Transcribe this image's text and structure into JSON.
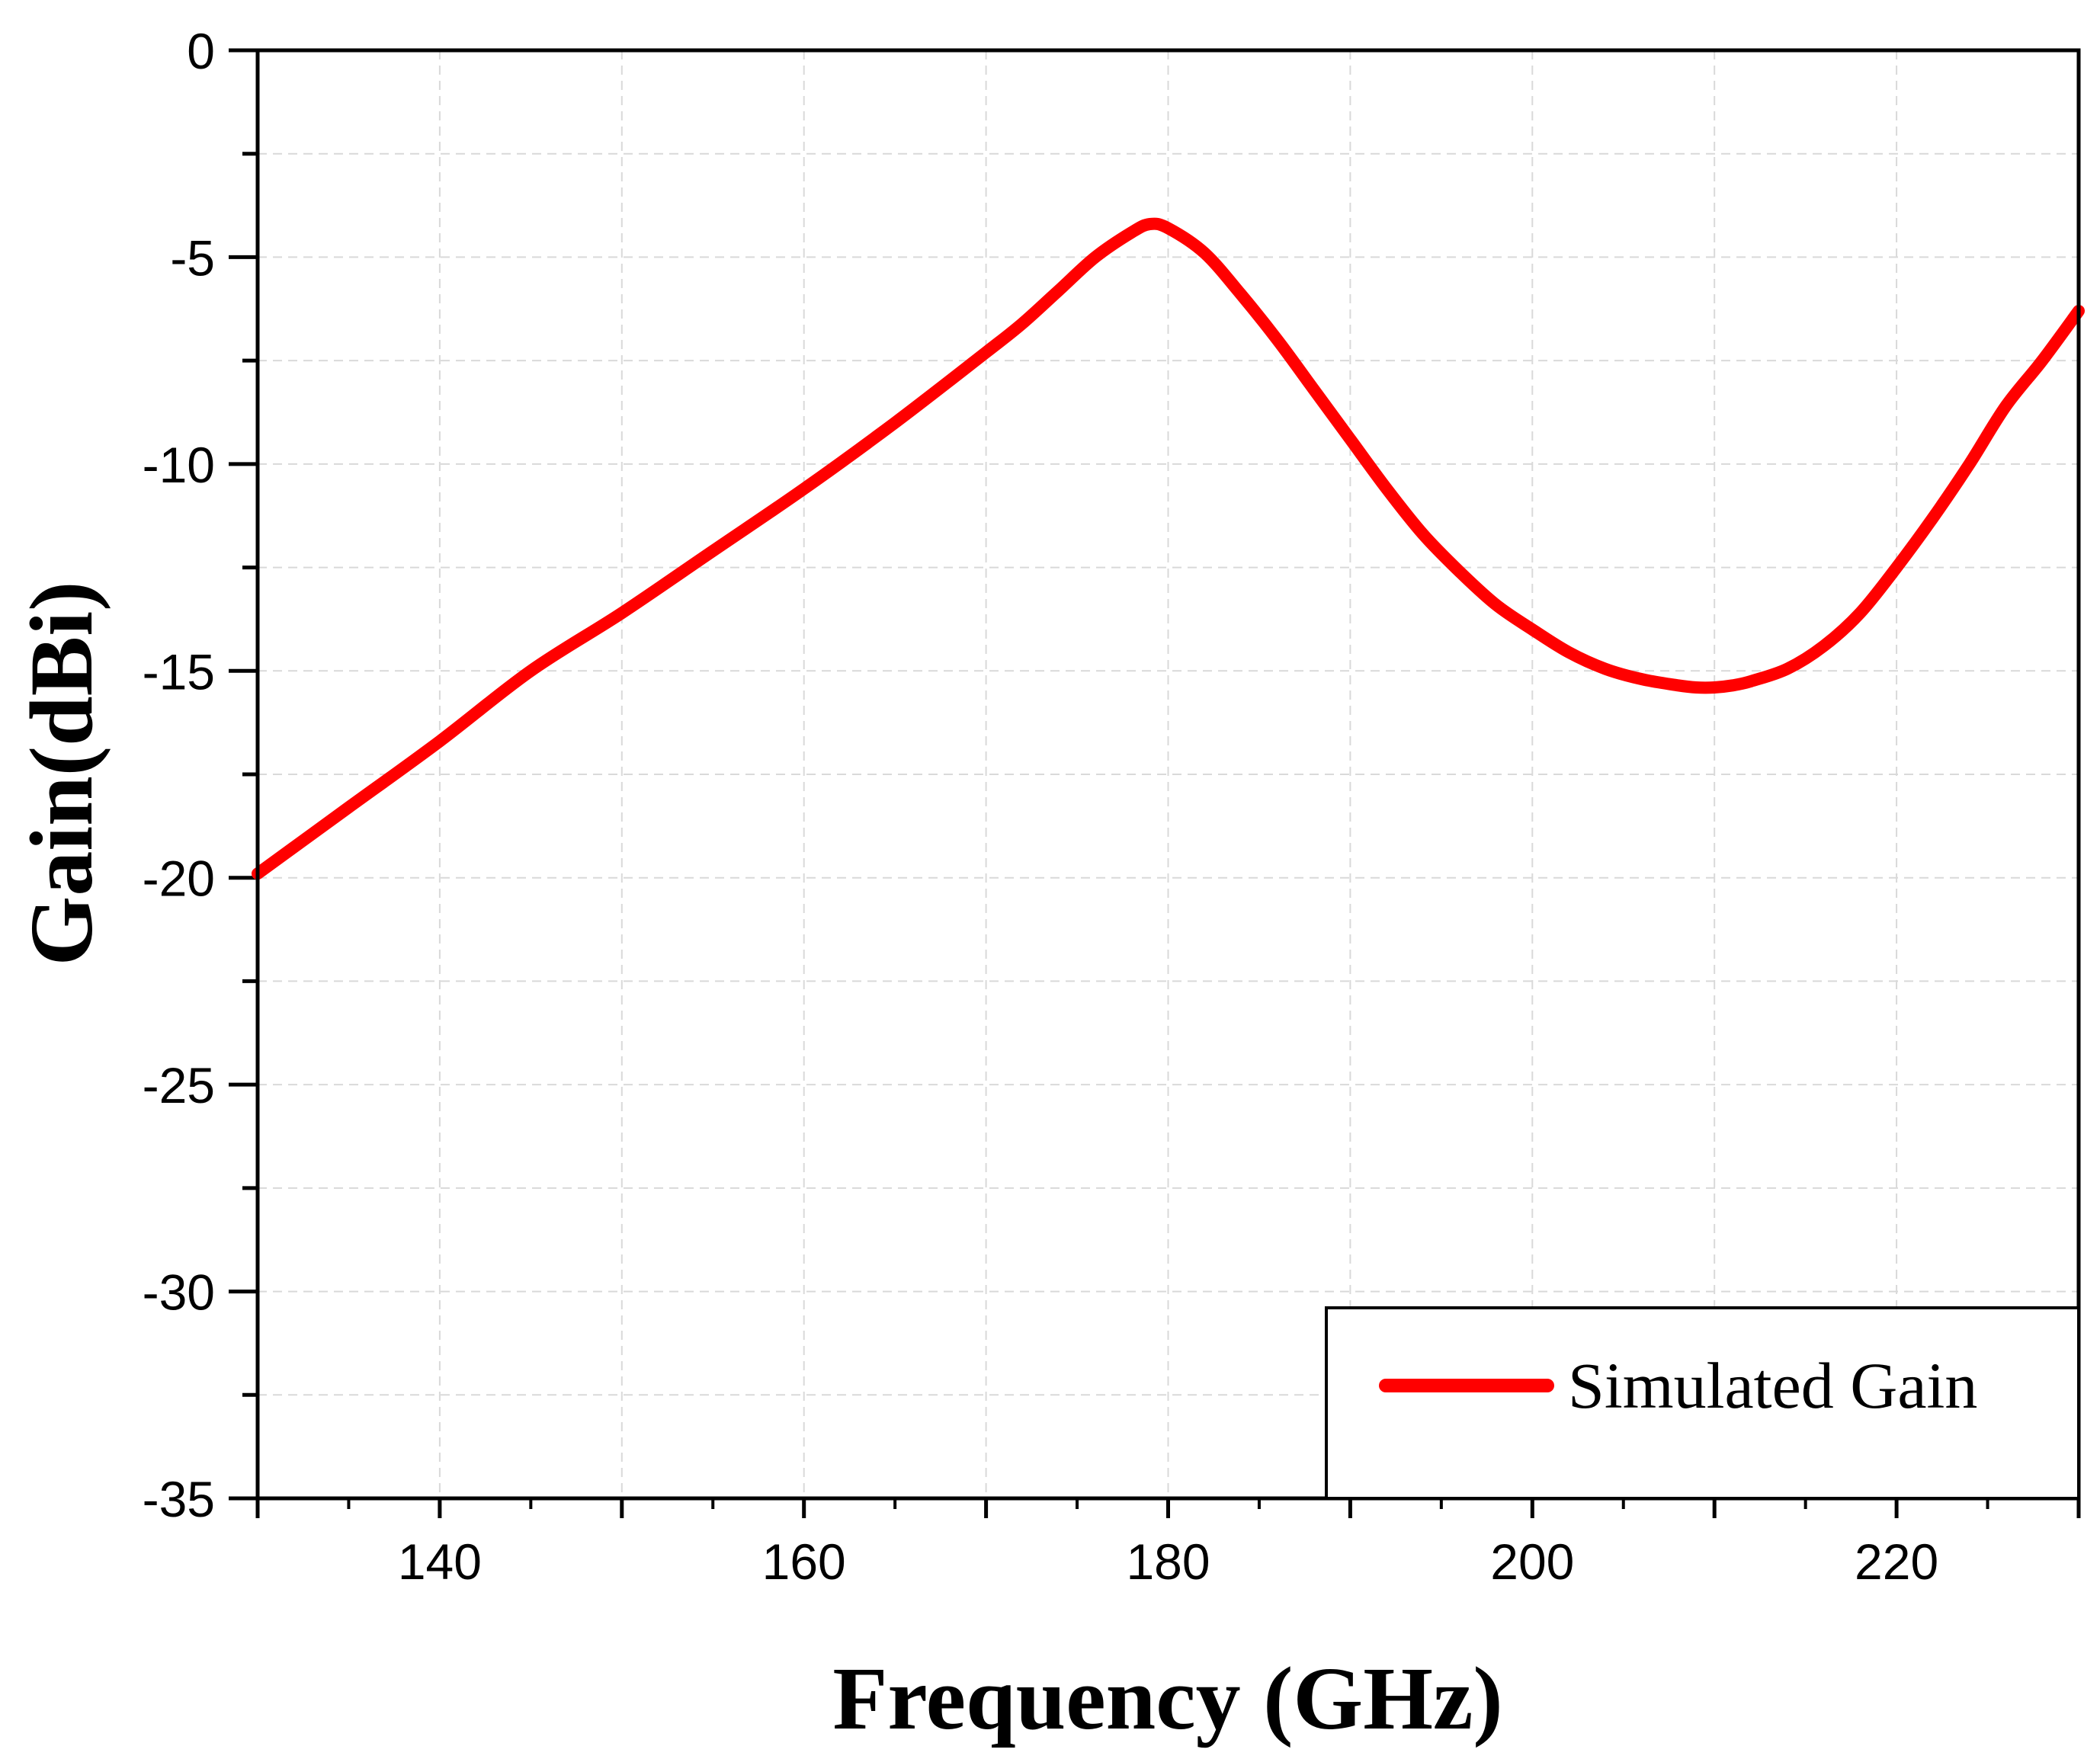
{
  "chart_data": {
    "type": "line",
    "title": "",
    "xlabel": "Frequency (GHz)",
    "ylabel": "Gain(dBi)",
    "xlim": [
      130,
      230
    ],
    "ylim": [
      -35,
      0
    ],
    "xticks": [
      140,
      160,
      180,
      200,
      220
    ],
    "xtick_labels": [
      "140",
      "160",
      "180",
      "200",
      "220"
    ],
    "yticks": [
      0,
      -5,
      -10,
      -15,
      -20,
      -25,
      -30,
      -35
    ],
    "ytick_labels": [
      "0",
      "-5",
      "-10",
      "-15",
      "-20",
      "-25",
      "-30",
      "-35"
    ],
    "grid": true,
    "legend_position": "bottom-right",
    "series": [
      {
        "name": "Simulated Gain",
        "color": "#ff0000",
        "x": [
          130,
          135,
          140,
          145,
          150,
          155,
          160,
          165,
          170,
          172,
          174,
          176,
          178,
          179,
          180,
          182,
          184,
          186,
          188,
          190,
          192,
          194,
          196,
          198,
          200,
          202,
          204,
          206,
          208,
          209,
          210,
          211,
          212,
          214,
          216,
          218,
          220,
          222,
          224,
          226,
          228,
          230
        ],
        "y": [
          -19.9,
          -18.3,
          -16.7,
          -15.0,
          -13.6,
          -12.1,
          -10.6,
          -9.0,
          -7.3,
          -6.6,
          -5.8,
          -5.0,
          -4.4,
          -4.2,
          -4.3,
          -4.9,
          -5.9,
          -7.0,
          -8.2,
          -9.4,
          -10.6,
          -11.7,
          -12.6,
          -13.4,
          -14.0,
          -14.55,
          -14.95,
          -15.2,
          -15.35,
          -15.4,
          -15.4,
          -15.35,
          -15.25,
          -14.95,
          -14.4,
          -13.6,
          -12.5,
          -11.3,
          -10.0,
          -8.6,
          -7.5,
          -6.3
        ]
      }
    ]
  }
}
